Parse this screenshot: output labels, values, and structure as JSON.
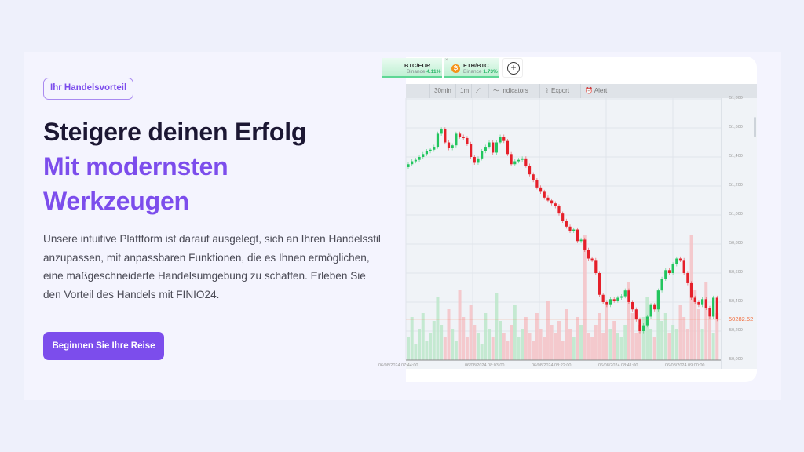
{
  "hero": {
    "badge": "Ihr Handelsvorteil",
    "title_line1": "Steigere deinen Erfolg",
    "title_line2": "Mit modernsten",
    "title_line3": "Werkzeugen",
    "paragraph_lines": [
      "Unsere intuitive Plattform ist darauf ausgelegt, sich an Ihren Handelsstil",
      "anzupassen, mit anpassbaren Funktionen, die es Ihnen ermöglichen,",
      "eine maßgeschneiderte Handelsumgebung zu schaffen. Erleben Sie",
      "den Vorteil des Handels mit FINIO24."
    ],
    "cta_label": "Beginnen Sie Ihre Reise",
    "accent_color": "#7c4dec"
  },
  "trading_widget": {
    "tabs": [
      {
        "pair": "BTC/EUR",
        "exchange": "Binance",
        "change": "4.11%"
      },
      {
        "pair": "ETH/BTC",
        "exchange": "Binance",
        "change": "1.73%",
        "icon": "bitcoin-icon"
      }
    ],
    "add_tab_icon": "plus-circle-icon",
    "toolbar": {
      "interval": "30min",
      "range": "1m",
      "chart_type_icon": "line-chart-icon",
      "indicators": "Indicators",
      "export": "Export",
      "alert": "Alert"
    },
    "current_price": "50282.52",
    "colors": {
      "up": "#22c55e",
      "down": "#e5202a",
      "price_line": "#f26b3a"
    }
  },
  "chart_data": {
    "type": "candlestick",
    "y_ticks": [
      "51,800",
      "51,600",
      "51,400",
      "51,200",
      "51,000",
      "50,800",
      "50,600",
      "50,400",
      "50,200",
      "50,000"
    ],
    "ylim": [
      50000,
      51800
    ],
    "x_ticks": [
      "06/08/2024 07:44:00",
      "06/08/2024 08:03:00",
      "06/08/2024 08:22:00",
      "06/08/2024 08:41:00",
      "06/08/2024 09:00:00"
    ],
    "grid": true,
    "open_first": 51330,
    "closes": [
      51350,
      51370,
      51380,
      51400,
      51420,
      51440,
      51450,
      51470,
      51560,
      51590,
      51500,
      51460,
      51480,
      51560,
      51540,
      51530,
      51490,
      51400,
      51360,
      51390,
      51440,
      51470,
      51500,
      51430,
      51500,
      51540,
      51510,
      51420,
      51350,
      51370,
      51380,
      51390,
      51340,
      51280,
      51240,
      51190,
      51160,
      51120,
      51100,
      51080,
      51060,
      51010,
      50960,
      50920,
      50890,
      50900,
      50820,
      50830,
      50760,
      50700,
      50690,
      50600,
      50450,
      50400,
      50380,
      50420,
      50410,
      50430,
      50440,
      50480,
      50400,
      50350,
      50280,
      50200,
      50240,
      50300,
      50380,
      50350,
      50480,
      50560,
      50620,
      50600,
      50660,
      50700,
      50690,
      50600,
      50530,
      50430,
      50400,
      50380,
      50420,
      50360,
      50300,
      50430,
      50282.52
    ],
    "volumes": [
      30,
      55,
      20,
      40,
      60,
      25,
      35,
      50,
      80,
      45,
      30,
      65,
      40,
      25,
      90,
      55,
      30,
      70,
      45,
      35,
      20,
      60,
      40,
      30,
      85,
      50,
      35,
      25,
      45,
      70,
      30,
      40,
      55,
      35,
      25,
      60,
      40,
      30,
      75,
      45,
      35,
      50,
      25,
      65,
      40,
      30,
      55,
      45,
      160,
      35,
      30,
      45,
      60,
      35,
      70,
      40,
      50,
      35,
      30,
      45,
      100,
      60,
      35,
      45,
      55,
      80,
      40,
      30,
      90,
      50,
      60,
      35,
      45,
      40,
      70,
      55,
      40,
      160,
      90,
      65,
      40,
      100,
      55,
      35,
      60
    ]
  }
}
